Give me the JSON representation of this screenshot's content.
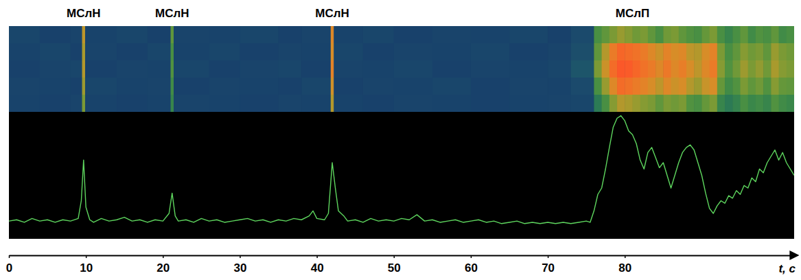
{
  "chart_data": {
    "type": "line",
    "color": "#5ed65e",
    "x": [
      0,
      1,
      2,
      3,
      4,
      5,
      6,
      7,
      8,
      9,
      9.4,
      9.7,
      10,
      10.5,
      11,
      12,
      13,
      14,
      15,
      16,
      17,
      18,
      19,
      20,
      20.8,
      21.2,
      21.6,
      22,
      23,
      24,
      25,
      26,
      27,
      28,
      29,
      30,
      31,
      32,
      33,
      34,
      35,
      36,
      37,
      38,
      39,
      39.5,
      40,
      41,
      41.5,
      42,
      42.4,
      42.8,
      43.5,
      44,
      45,
      46,
      47,
      48,
      49,
      50,
      51,
      52,
      53,
      54,
      55,
      56,
      57,
      58,
      59,
      60,
      61,
      62,
      63,
      64,
      65,
      66,
      67,
      68,
      69,
      70,
      71,
      72,
      73,
      74,
      75,
      75.5,
      76,
      76.5,
      77,
      77.5,
      78,
      78.5,
      79,
      79.5,
      80,
      80.5,
      81,
      81.5,
      82,
      82.5,
      83,
      83.5,
      84,
      84.5,
      85,
      85.5,
      86,
      86.5,
      87,
      87.5,
      88,
      88.5,
      89,
      89.5,
      90,
      90.5,
      91,
      91.5,
      92,
      92.5,
      93,
      93.5,
      94,
      94.5,
      95,
      95.5,
      96,
      96.5,
      97,
      97.5,
      98,
      98.5,
      99,
      99.5,
      100,
      100.5,
      101,
      101.5,
      102
    ],
    "values": [
      0.14,
      0.15,
      0.13,
      0.16,
      0.14,
      0.15,
      0.13,
      0.15,
      0.14,
      0.16,
      0.3,
      0.62,
      0.25,
      0.15,
      0.13,
      0.16,
      0.14,
      0.15,
      0.17,
      0.14,
      0.15,
      0.13,
      0.15,
      0.14,
      0.2,
      0.36,
      0.18,
      0.14,
      0.15,
      0.13,
      0.16,
      0.14,
      0.15,
      0.13,
      0.14,
      0.15,
      0.16,
      0.14,
      0.15,
      0.13,
      0.15,
      0.14,
      0.16,
      0.15,
      0.18,
      0.22,
      0.16,
      0.15,
      0.2,
      0.6,
      0.4,
      0.22,
      0.18,
      0.14,
      0.15,
      0.13,
      0.16,
      0.14,
      0.15,
      0.14,
      0.16,
      0.15,
      0.19,
      0.14,
      0.15,
      0.13,
      0.14,
      0.15,
      0.13,
      0.14,
      0.15,
      0.13,
      0.14,
      0.12,
      0.13,
      0.14,
      0.12,
      0.13,
      0.12,
      0.13,
      0.12,
      0.13,
      0.12,
      0.13,
      0.14,
      0.13,
      0.22,
      0.35,
      0.4,
      0.55,
      0.72,
      0.88,
      0.95,
      0.97,
      0.93,
      0.85,
      0.82,
      0.75,
      0.62,
      0.55,
      0.68,
      0.72,
      0.64,
      0.56,
      0.6,
      0.5,
      0.4,
      0.5,
      0.6,
      0.68,
      0.72,
      0.74,
      0.7,
      0.6,
      0.5,
      0.36,
      0.24,
      0.2,
      0.26,
      0.3,
      0.28,
      0.34,
      0.32,
      0.38,
      0.35,
      0.42,
      0.4,
      0.48,
      0.45,
      0.55,
      0.52,
      0.6,
      0.65,
      0.7,
      0.62,
      0.68,
      0.6,
      0.55,
      0.5
    ],
    "xlim": [
      0,
      102
    ],
    "xticks": [
      0,
      10,
      20,
      30,
      40,
      50,
      60,
      70,
      80
    ],
    "ylim": [
      0,
      1
    ],
    "tick_labels": "x",
    "x_label": "t, с",
    "annotations": [
      {
        "text": "МСлН",
        "x": 9.7
      },
      {
        "text": "МСлН",
        "x": 21.2
      },
      {
        "text": "МСлН",
        "x": 42
      },
      {
        "text": "МСлП",
        "x": 81
      }
    ],
    "heatmap": {
      "x": [
        0,
        4,
        8,
        9.5,
        9.9,
        14,
        18,
        21,
        21.4,
        26,
        30,
        35,
        38,
        41.8,
        42.2,
        46,
        50,
        55,
        60,
        65,
        70,
        73,
        76,
        77,
        78,
        79,
        80,
        81,
        82,
        83,
        84,
        85,
        86,
        87,
        88,
        89,
        90,
        91,
        92,
        93,
        94,
        95,
        96,
        97,
        98,
        99,
        100,
        101,
        102
      ],
      "range": [
        0,
        1
      ],
      "cells": [
        [
          0.18,
          0.15,
          0.17,
          0.72,
          0.16,
          0.18,
          0.15,
          0.55,
          0.17,
          0.16,
          0.18,
          0.15,
          0.17,
          0.8,
          0.16,
          0.18,
          0.15,
          0.17,
          0.16,
          0.18,
          0.15,
          0.2,
          0.5,
          0.55,
          0.6,
          0.65,
          0.62,
          0.58,
          0.6,
          0.55,
          0.5,
          0.58,
          0.6,
          0.55,
          0.52,
          0.5,
          0.56,
          0.6,
          0.5,
          0.45,
          0.5,
          0.55,
          0.48,
          0.52,
          0.5,
          0.55,
          0.48,
          0.5
        ],
        [
          0.16,
          0.18,
          0.15,
          0.68,
          0.17,
          0.15,
          0.18,
          0.5,
          0.16,
          0.18,
          0.15,
          0.17,
          0.16,
          0.78,
          0.18,
          0.15,
          0.17,
          0.16,
          0.18,
          0.15,
          0.17,
          0.22,
          0.55,
          0.7,
          0.85,
          0.92,
          0.9,
          0.88,
          0.85,
          0.8,
          0.75,
          0.82,
          0.78,
          0.8,
          0.72,
          0.7,
          0.78,
          0.82,
          0.6,
          0.5,
          0.55,
          0.62,
          0.58,
          0.6,
          0.55,
          0.65,
          0.6,
          0.58
        ],
        [
          0.15,
          0.17,
          0.18,
          0.7,
          0.15,
          0.17,
          0.16,
          0.52,
          0.18,
          0.15,
          0.17,
          0.18,
          0.15,
          0.82,
          0.17,
          0.16,
          0.18,
          0.15,
          0.17,
          0.16,
          0.18,
          0.25,
          0.6,
          0.75,
          0.9,
          0.96,
          0.95,
          0.92,
          0.88,
          0.85,
          0.8,
          0.86,
          0.8,
          0.84,
          0.78,
          0.72,
          0.8,
          0.85,
          0.62,
          0.52,
          0.58,
          0.66,
          0.6,
          0.64,
          0.58,
          0.68,
          0.62,
          0.6
        ],
        [
          0.17,
          0.16,
          0.15,
          0.66,
          0.18,
          0.16,
          0.17,
          0.48,
          0.15,
          0.17,
          0.16,
          0.15,
          0.18,
          0.76,
          0.15,
          0.17,
          0.16,
          0.18,
          0.15,
          0.17,
          0.16,
          0.2,
          0.5,
          0.65,
          0.8,
          0.9,
          0.88,
          0.85,
          0.82,
          0.78,
          0.72,
          0.8,
          0.75,
          0.78,
          0.7,
          0.66,
          0.74,
          0.78,
          0.56,
          0.48,
          0.52,
          0.6,
          0.55,
          0.58,
          0.52,
          0.62,
          0.56,
          0.55
        ],
        [
          0.16,
          0.15,
          0.17,
          0.6,
          0.16,
          0.15,
          0.16,
          0.45,
          0.17,
          0.16,
          0.15,
          0.17,
          0.16,
          0.7,
          0.16,
          0.15,
          0.17,
          0.16,
          0.15,
          0.16,
          0.17,
          0.18,
          0.4,
          0.5,
          0.62,
          0.7,
          0.68,
          0.65,
          0.62,
          0.6,
          0.55,
          0.6,
          0.58,
          0.6,
          0.52,
          0.5,
          0.56,
          0.6,
          0.45,
          0.4,
          0.44,
          0.5,
          0.46,
          0.48,
          0.45,
          0.52,
          0.48,
          0.46
        ]
      ]
    }
  }
}
